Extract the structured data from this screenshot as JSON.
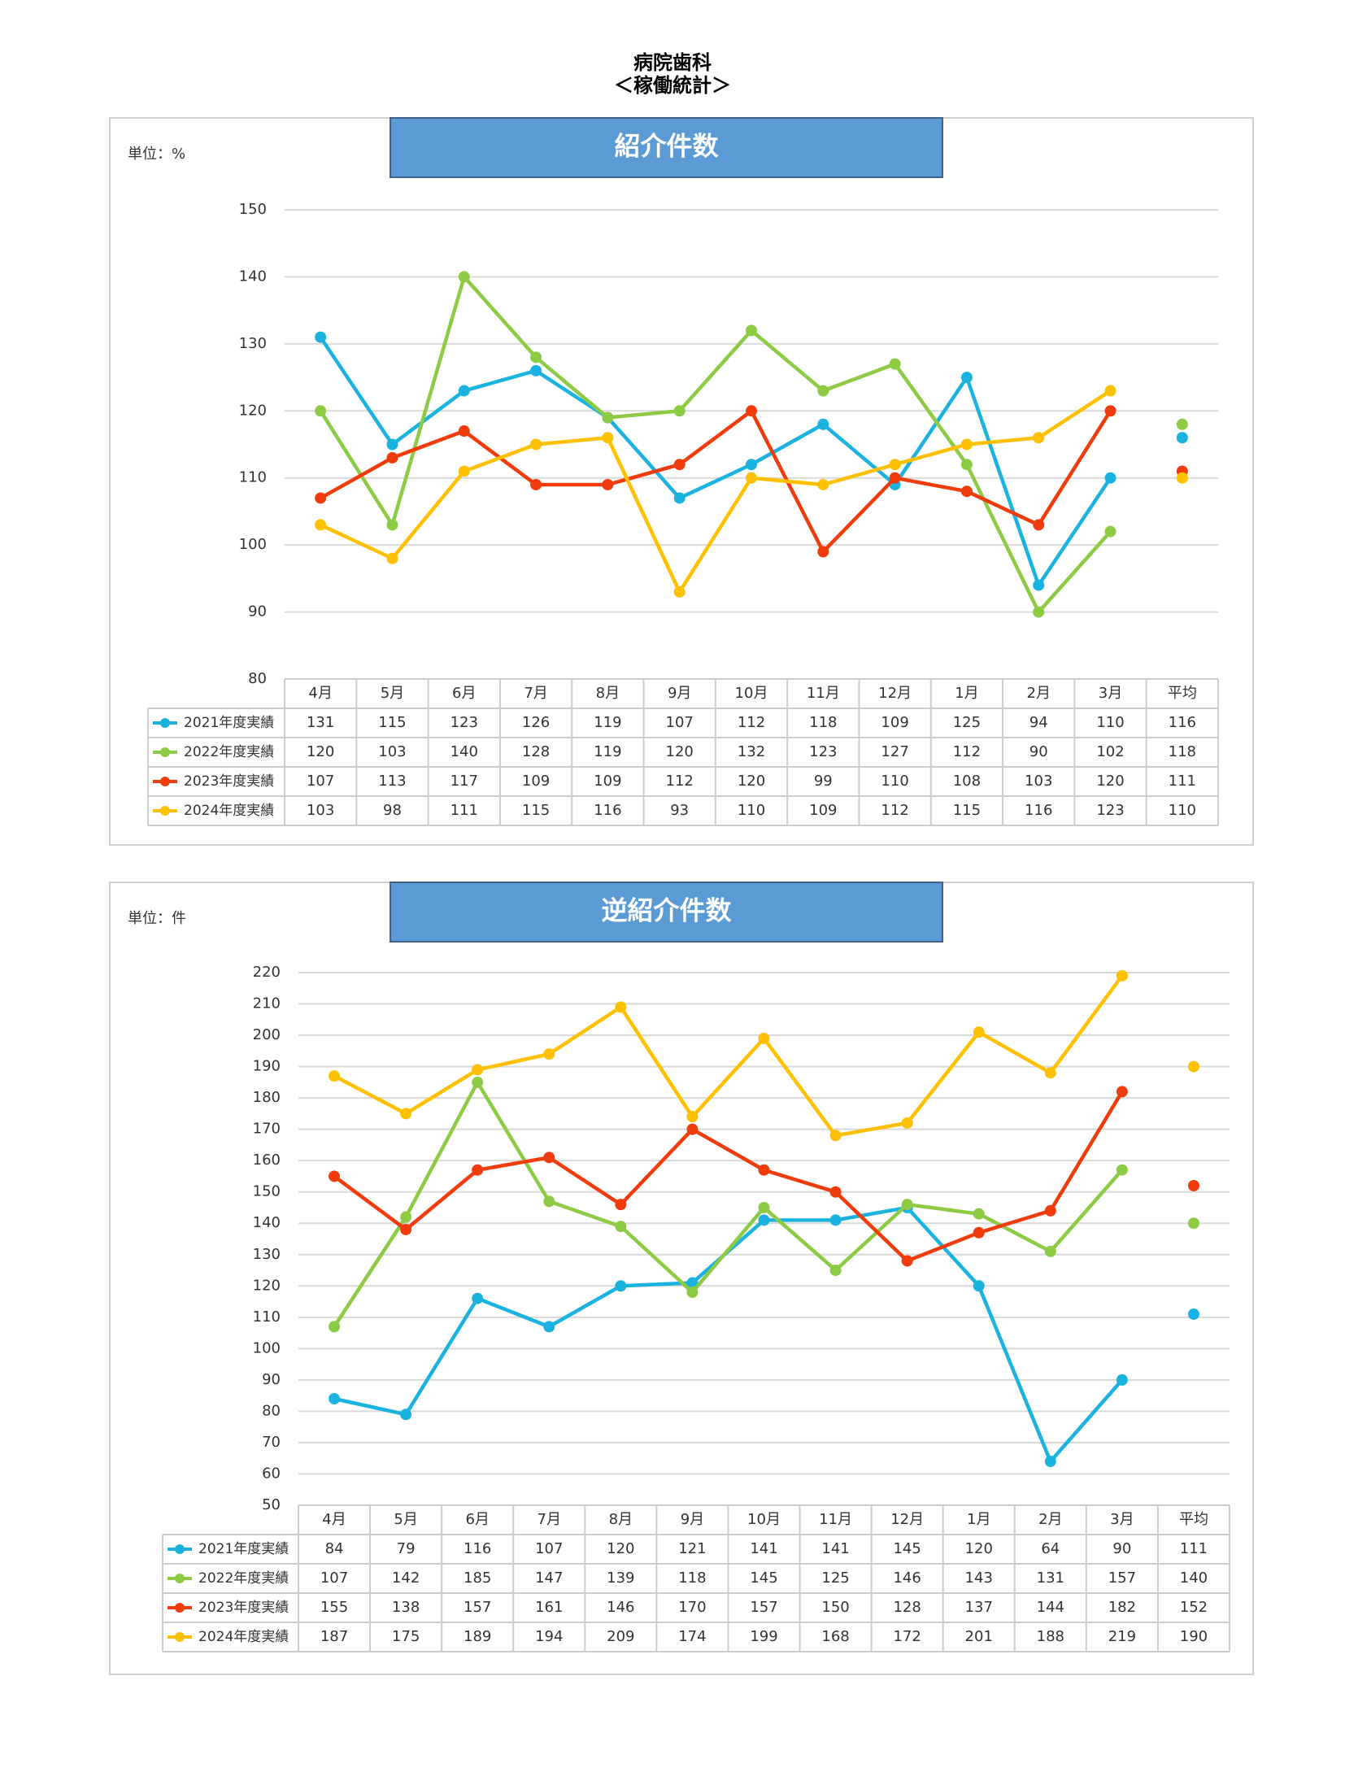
{
  "header": {
    "title": "病院歯科",
    "subtitle": "＜稼働統計＞"
  },
  "chart_data": [
    {
      "type": "line",
      "title": "紹介件数",
      "unit": "単位：%",
      "categories": [
        "4月",
        "5月",
        "6月",
        "7月",
        "8月",
        "9月",
        "10月",
        "11月",
        "12月",
        "1月",
        "2月",
        "3月",
        "平均"
      ],
      "ylim": [
        80,
        150
      ],
      "yticks": [
        80,
        90,
        100,
        110,
        120,
        130,
        140,
        150
      ],
      "grid": true,
      "series": [
        {
          "name": "2021年度実績",
          "color": "#1ab3e0",
          "values": [
            131,
            115,
            123,
            126,
            119,
            107,
            112,
            118,
            109,
            125,
            94,
            110,
            116
          ]
        },
        {
          "name": "2022年度実績",
          "color": "#8dcb45",
          "values": [
            120,
            103,
            140,
            128,
            119,
            120,
            132,
            123,
            127,
            112,
            90,
            102,
            118
          ]
        },
        {
          "name": "2023年度実績",
          "color": "#f03c0c",
          "values": [
            107,
            113,
            117,
            109,
            109,
            112,
            120,
            99,
            110,
            108,
            103,
            120,
            111
          ]
        },
        {
          "name": "2024年度実績",
          "color": "#ffc000",
          "values": [
            103,
            98,
            111,
            115,
            116,
            93,
            110,
            109,
            112,
            115,
            116,
            123,
            110
          ]
        }
      ]
    },
    {
      "type": "line",
      "title": "逆紹介件数",
      "unit": "単位：件",
      "categories": [
        "4月",
        "5月",
        "6月",
        "7月",
        "8月",
        "9月",
        "10月",
        "11月",
        "12月",
        "1月",
        "2月",
        "3月",
        "平均"
      ],
      "ylim": [
        50,
        220
      ],
      "yticks": [
        50,
        60,
        70,
        80,
        90,
        100,
        110,
        120,
        130,
        140,
        150,
        160,
        170,
        180,
        190,
        200,
        210,
        220
      ],
      "grid": true,
      "series": [
        {
          "name": "2021年度実績",
          "color": "#1ab3e0",
          "values": [
            84,
            79,
            116,
            107,
            120,
            121,
            141,
            141,
            145,
            120,
            64,
            90,
            111
          ]
        },
        {
          "name": "2022年度実績",
          "color": "#8dcb45",
          "values": [
            107,
            142,
            185,
            147,
            139,
            118,
            145,
            125,
            146,
            143,
            131,
            157,
            140
          ]
        },
        {
          "name": "2023年度実績",
          "color": "#f03c0c",
          "values": [
            155,
            138,
            157,
            161,
            146,
            170,
            157,
            150,
            128,
            137,
            144,
            182,
            152
          ]
        },
        {
          "name": "2024年度実績",
          "color": "#ffc000",
          "values": [
            187,
            175,
            189,
            194,
            209,
            174,
            199,
            168,
            172,
            201,
            188,
            219,
            190
          ]
        }
      ]
    }
  ]
}
